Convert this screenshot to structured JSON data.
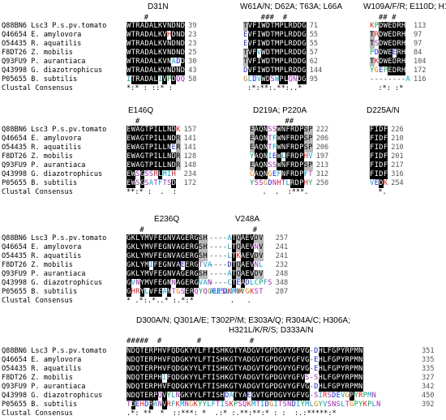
{
  "species": [
    "Q88BN6 Lsc3 P.s.pv.tomato",
    "Q46654 E. amylovora",
    "O54435 R. aquatilis",
    "F8DT26 Z. mobilis",
    "Q93FU9 P. aurantiaca",
    "Q43998 G. diazotrophicus",
    "P05655 B. subtilis"
  ],
  "consensus_label": "Clustal Consensus",
  "panels": [
    {
      "id": "panel-1",
      "blocks": [
        {
          "title": "D31N",
          "hash": "    #",
          "rows": [
            "WTRADALKVNDND",
            "WTRADALKVHDND",
            "WTRADALKVNDND",
            "WTRADALKVNDND",
            "WTRADALKVNADD",
            "WTRADALKVNDND",
            "ITRADALIVPDQQ"
          ],
          "nums": [
            "39",
            "23",
            "23",
            "25",
            "30",
            "43",
            "58"
          ],
          "consensus": "*:* : ::* :  "
        },
        {
          "title": "W61A/N; D62A; T63A; L66A",
          "hash": "    ###  #",
          "rows": [
            "TVFIWDTMPLRDDG",
            "EVFIWDTMPLRDDG",
            "EVFIWDTMPLRDDG",
            "TVFVWDTMPLRDDG",
            "TVFIWDTMPLRDDG",
            "DVFIWDTMPLRDDG",
            "GLDVWDSWPLQNDG"
          ],
          "nums": [
            "71",
            "55",
            "55",
            "57",
            "62",
            "144",
            "95"
          ],
          "consensus": " :*:**:.**:..* "
        },
        {
          "title": "W109A/F/R; E110D; H113A/Q",
          "hash": "  ## #",
          "rows": [
            "KPDWEDRH",
            "TRDWEDRH",
            "TSDWEDRH",
            "PDDWEERH",
            "TKDWEDRH",
            "YGEPEDRH",
            "--------A"
          ],
          "nums": [
            "113",
            "97",
            "97",
            "84",
            "104",
            "172",
            "116"
          ],
          "consensus": "  :*: :*"
        }
      ]
    },
    {
      "id": "panel-2",
      "blocks": [
        {
          "title": "E146Q",
          "hash": "  #",
          "rows": [
            "EWAGTPILLNDK",
            "EWAGTPILLNDR",
            "EWAGTPILLNER",
            "EWAGTPILLNDR",
            "EWAGTPILLNDR",
            "EWSGSSRLMIH",
            "EWSGSATFTSD"
          ],
          "nums": [
            "157",
            "141",
            "141",
            "128",
            "148",
            "234",
            "172"
          ],
          "consensus": "**:* :  .  :"
        },
        {
          "title": "D219A; P220A",
          "hash": "        ##",
          "rows": [
            "EAQNSSWNFRDPSP",
            "EAQNTFWNFRDPSP",
            "EAQNTFWNFRDPSP",
            "YAQNIEWLFRDPHV",
            "EAQNSSWNFRDPSP",
            "GAQNGEFNFRDPFT",
            "YSSGDNHTLRDPHY"
          ],
          "nums": [
            "222",
            "206",
            "206",
            "197",
            "213",
            "312",
            "250"
          ],
          "consensus": "   .  .  :***.  "
        },
        {
          "title": "D225A/N",
          "hash": "",
          "rows": [
            "FIDF",
            "FIDF",
            "FIDF",
            "FIDF",
            "FIDF",
            "FIDF",
            "VEDK"
          ],
          "nums": [
            "226",
            "210",
            "210",
            "201",
            "217",
            "316",
            "254"
          ],
          "consensus": "  *."
        }
      ]
    },
    {
      "id": "panel-3",
      "blocks": [
        {
          "title": "E236Q",
          "hash": "   #",
          "rows": [
            "GKLYMVFEGNVAGERGSH",
            "GKLYMVFEGNVAGERGSH",
            "GKLYMVFEGNVAGERGSH",
            "GKLYMIFEGNVAEERGTVA",
            "GKLYMVFEGNVAGERGSH",
            "GVNYMVFEGNNAGERGVAN",
            "GHRYLVFEANTGSERQYQGEESLFNK"
          ],
          "nums": [],
          "consensus": "* .*:.*..* :.*:*  "
        },
        {
          "title": "V248A",
          "hash": "    #",
          "rows": [
            "----ATQAEVDV",
            "----LTQAEVNV",
            "----LTKAEVDV",
            "----DTQAEVNL",
            "----ATQAEVDV",
            "----CTEADLCPFS",
            "ALFDKAYYGKST"
          ],
          "nums": [
            "257",
            "241",
            "241",
            "232",
            "248",
            "348",
            "287"
          ],
          "consensus": "     .   .  "
        }
      ]
    },
    {
      "id": "panel-4",
      "title_line1": "D300A/N; Q301A/E; T302P/M; E303A/Q; R304A/C; H306A;",
      "title_line2": "H321L/K/R/S; D333A/N",
      "hash": "#####  #        #           #",
      "rows": [
        "NDQTERPHVFQDGKYYLFTISHKGTYADGVTGPDGVYGFVG-DHLFGPYRPMN",
        "NDQTERPHVFQDGKYYLFTISHKGTYADGVTGPDGVYGFVG-EHLFGPYRPMN",
        "NDQTERPHVFQDGKYYLFTISHKGTYADGVTGPDGVYGFVG-EHLFGPYRPMN",
        "NDQTERPHIFQDGKYYLFTISHKGTYADGVTGPDGVYGFVS-SHLFGPYRPMN",
        "NDQTERPHVFQDGKYYLFTISHKGTYADGVTGPDGVYGFVG-DHLFGPYRPMN",
        "NDQTERPQVYLNGKYYLFTISHDATYAEGVTGPDGVYGFVG-SIRSDEVGPYRPMN",
        "TDEHDRANVRFKMNGKYYLFTISKPSQKMTIDGITSNDIYMLGYVSNSLTGPYKPLN"
      ],
      "nums": [
        "351",
        "335",
        "335",
        "327",
        "342",
        "450",
        "392"
      ],
      "consensus": ".*: **  *  ::***: *  .:* :.**:**:* : :  :.:*****:*"
    }
  ],
  "colors": {
    "identical_bg": "#000000",
    "identical_fg": "#ffffff",
    "similar_bg": "#b8b8b8",
    "hydrophobic": "#00a2c7",
    "acidic": "#1c24d8",
    "basic": "#e0181d",
    "polar": "#9c27b0",
    "glycine": "#e07b00",
    "neutral": "#0aa24a"
  }
}
